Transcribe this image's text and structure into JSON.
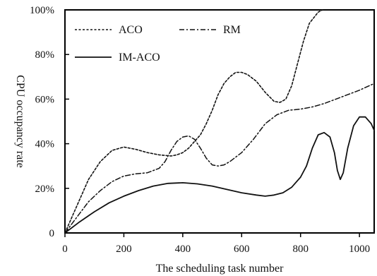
{
  "chart_data": {
    "type": "line",
    "xlabel": "The scheduling task number",
    "ylabel": "CPU occupancy rate",
    "xlim": [
      0,
      1050
    ],
    "ylim": [
      0,
      100
    ],
    "x_ticks": [
      "0",
      "200",
      "400",
      "600",
      "800",
      "1000"
    ],
    "y_ticks": [
      "0",
      "20%",
      "40%",
      "60%",
      "80%",
      "100%"
    ],
    "grid": false,
    "legend_position": "top-left",
    "series": [
      {
        "name": "ACO",
        "line_style": "dotted",
        "points": [
          [
            0,
            0
          ],
          [
            40,
            12
          ],
          [
            80,
            24
          ],
          [
            120,
            32
          ],
          [
            160,
            37
          ],
          [
            200,
            38.5
          ],
          [
            240,
            37.5
          ],
          [
            280,
            36
          ],
          [
            320,
            35
          ],
          [
            360,
            34.5
          ],
          [
            380,
            35
          ],
          [
            400,
            36
          ],
          [
            420,
            38
          ],
          [
            440,
            41
          ],
          [
            460,
            44
          ],
          [
            480,
            49
          ],
          [
            500,
            55
          ],
          [
            520,
            62
          ],
          [
            540,
            67
          ],
          [
            560,
            70
          ],
          [
            580,
            72
          ],
          [
            600,
            72
          ],
          [
            620,
            71
          ],
          [
            650,
            68
          ],
          [
            680,
            63
          ],
          [
            710,
            59
          ],
          [
            730,
            58.5
          ],
          [
            750,
            60
          ],
          [
            770,
            66
          ],
          [
            790,
            76
          ],
          [
            810,
            86
          ],
          [
            830,
            94
          ],
          [
            860,
            99
          ],
          [
            875,
            100
          ]
        ]
      },
      {
        "name": "RM",
        "line_style": "dash-dot",
        "points": [
          [
            0,
            0
          ],
          [
            40,
            7
          ],
          [
            80,
            14
          ],
          [
            120,
            19
          ],
          [
            160,
            23
          ],
          [
            200,
            25.5
          ],
          [
            240,
            26.5
          ],
          [
            280,
            27
          ],
          [
            320,
            29
          ],
          [
            340,
            32
          ],
          [
            360,
            37
          ],
          [
            380,
            41
          ],
          [
            400,
            43
          ],
          [
            420,
            43.5
          ],
          [
            440,
            42
          ],
          [
            460,
            38
          ],
          [
            480,
            33.5
          ],
          [
            500,
            30.5
          ],
          [
            520,
            30
          ],
          [
            540,
            30.5
          ],
          [
            560,
            32
          ],
          [
            600,
            36
          ],
          [
            640,
            42
          ],
          [
            680,
            49
          ],
          [
            720,
            53
          ],
          [
            760,
            55
          ],
          [
            800,
            55.5
          ],
          [
            840,
            56.5
          ],
          [
            880,
            58
          ],
          [
            920,
            60
          ],
          [
            960,
            62
          ],
          [
            1000,
            64
          ],
          [
            1050,
            67
          ]
        ]
      },
      {
        "name": "IM-ACO",
        "line_style": "solid",
        "points": [
          [
            0,
            0
          ],
          [
            50,
            5
          ],
          [
            100,
            9.5
          ],
          [
            150,
            13.5
          ],
          [
            200,
            16.5
          ],
          [
            250,
            19
          ],
          [
            300,
            21
          ],
          [
            350,
            22.2
          ],
          [
            400,
            22.5
          ],
          [
            450,
            22
          ],
          [
            500,
            21
          ],
          [
            550,
            19.5
          ],
          [
            600,
            18
          ],
          [
            650,
            17
          ],
          [
            680,
            16.5
          ],
          [
            710,
            17
          ],
          [
            740,
            18
          ],
          [
            770,
            20.5
          ],
          [
            800,
            25
          ],
          [
            820,
            30
          ],
          [
            840,
            38
          ],
          [
            860,
            44
          ],
          [
            880,
            45
          ],
          [
            900,
            43
          ],
          [
            915,
            36
          ],
          [
            925,
            28
          ],
          [
            935,
            24
          ],
          [
            945,
            27
          ],
          [
            960,
            38
          ],
          [
            980,
            48
          ],
          [
            1000,
            52
          ],
          [
            1020,
            52
          ],
          [
            1040,
            49
          ],
          [
            1050,
            46
          ]
        ]
      }
    ]
  }
}
